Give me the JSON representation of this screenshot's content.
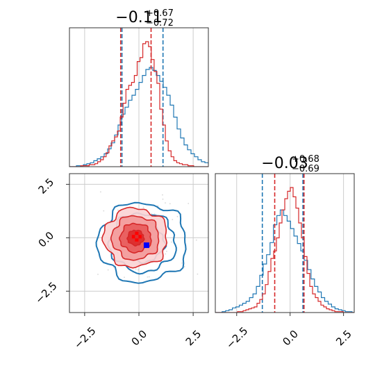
{
  "chart_data": [
    {
      "type": "histogram",
      "panel": "top-left marginal (x)",
      "title": {
        "main": "−0.11",
        "sup": "+0.67",
        "sub": "−0.72"
      },
      "xlim": [
        -3.2,
        3.2
      ],
      "grid": true,
      "series": [
        {
          "name": "",
          "color": "#1f77b4",
          "bin_start": -3.2,
          "bin_width": 0.16,
          "counts": [
            0,
            0,
            1,
            1,
            2,
            3,
            4,
            6,
            8,
            10,
            13,
            18,
            24,
            32,
            42,
            53,
            60,
            67,
            72,
            78,
            85,
            92,
            98,
            100,
            97,
            92,
            86,
            80,
            72,
            62,
            50,
            38,
            29,
            22,
            17,
            13,
            10,
            7,
            5,
            4,
            3,
            2,
            1,
            1,
            0,
            0
          ],
          "quantiles": [
            -0.78,
            1.11
          ]
        },
        {
          "name": "",
          "color": "#d62728",
          "bin_start": -3.2,
          "bin_width": 0.13,
          "counts": [
            0,
            0,
            0,
            0,
            1,
            1,
            1,
            2,
            2,
            3,
            5,
            7,
            10,
            14,
            21,
            26,
            30,
            36,
            50,
            64,
            78,
            82,
            85,
            92,
            106,
            110,
            124,
            126,
            121,
            108,
            96,
            84,
            58,
            42,
            26,
            16,
            10,
            6,
            4,
            3,
            2,
            2,
            1,
            1,
            0,
            0,
            0,
            0,
            0,
            0
          ],
          "quantiles": [
            -0.84,
            0.56
          ]
        }
      ]
    },
    {
      "type": "histogram",
      "panel": "bottom-right marginal (y)",
      "title": {
        "main": "−0.03",
        "sup": "+0.68",
        "sub": "−0.69"
      },
      "xlim": [
        -3.5,
        3.0
      ],
      "xticks": [
        "−2.5",
        "0.0",
        "2.5"
      ],
      "grid": true,
      "series": [
        {
          "name": "",
          "color": "#1f77b4",
          "bin_start": -3.5,
          "bin_width": 0.16,
          "counts": [
            0,
            0,
            1,
            2,
            3,
            5,
            6,
            8,
            10,
            12,
            16,
            20,
            28,
            40,
            52,
            62,
            75,
            94,
            104,
            110,
            104,
            98,
            90,
            82,
            74,
            66,
            56,
            46,
            36,
            28,
            22,
            16,
            12,
            9,
            6,
            4,
            3,
            2,
            1,
            1,
            0
          ],
          "quantiles": [
            -1.3,
            0.6
          ]
        },
        {
          "name": "",
          "color": "#d62728",
          "bin_start": -3.5,
          "bin_width": 0.13,
          "counts": [
            0,
            0,
            0,
            0,
            0,
            0,
            0,
            0,
            1,
            1,
            2,
            3,
            4,
            5,
            6,
            10,
            14,
            20,
            30,
            44,
            58,
            66,
            80,
            96,
            110,
            122,
            130,
            134,
            124,
            112,
            96,
            80,
            60,
            42,
            28,
            20,
            16,
            12,
            8,
            6,
            4,
            3,
            2,
            1,
            1,
            1,
            0,
            0,
            0,
            0
          ],
          "quantiles": [
            -0.72,
            0.65
          ]
        }
      ]
    },
    {
      "type": "contour",
      "panel": "bottom-left 2D density (x vs y)",
      "xlim": [
        -3.2,
        3.2
      ],
      "ylim": [
        -3.5,
        3.0
      ],
      "xticks": [
        "−2.5",
        "0.0",
        "2.5"
      ],
      "yticks": [
        "−2.5",
        "0.0",
        "2.5"
      ],
      "grid": true,
      "series": [
        {
          "name": "",
          "color": "#1f77b4",
          "center": [
            0.17,
            -0.22
          ],
          "sigma": [
            0.95,
            0.86
          ],
          "levels": [
            0.5,
            1.05,
            1.6,
            2.15
          ],
          "filled": false
        },
        {
          "name": "",
          "color": "#d62728",
          "center": [
            -0.15,
            0.0
          ],
          "sigma": [
            0.68,
            0.64
          ],
          "levels": [
            0.55,
            1.05,
            1.6,
            2.15
          ],
          "filled": true
        }
      ],
      "truth_markers": [
        {
          "color": "#ff0000",
          "x": -0.1,
          "y": 0.05,
          "shape": "cross"
        },
        {
          "color": "#0000ff",
          "x": 0.35,
          "y": -0.35,
          "shape": "square"
        }
      ]
    }
  ]
}
